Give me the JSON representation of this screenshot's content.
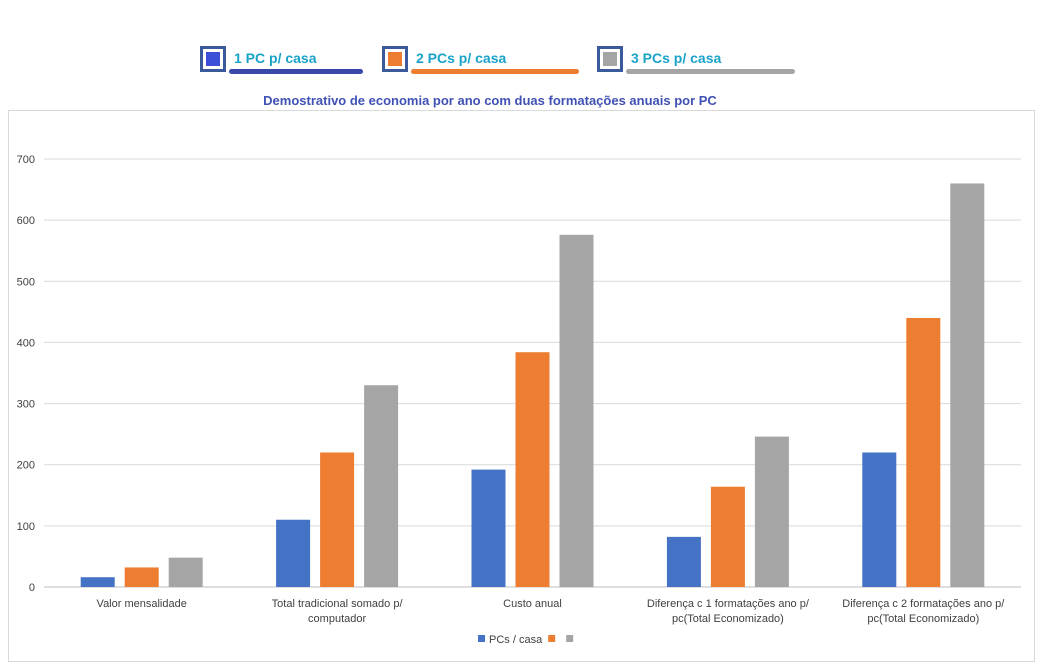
{
  "top_legend": [
    {
      "label": "1 PC p/ casa",
      "swatch_color": "#3d4fd6",
      "line_color": "#3949a8"
    },
    {
      "label": "2 PCs p/ casa",
      "swatch_color": "#ed7d31",
      "line_color": "#ed7d31"
    },
    {
      "label": "3 PCs p/ casa",
      "swatch_color": "#a5a5a5",
      "line_color": "#a5a5a5"
    }
  ],
  "chart_data": {
    "type": "bar",
    "title": "Demostrativo de economia por ano com duas formatações  anuais por PC",
    "xlabel": "",
    "ylabel": "",
    "ylim": [
      0,
      700
    ],
    "yticks": [
      0,
      100,
      200,
      300,
      400,
      500,
      600,
      700
    ],
    "grid": true,
    "legend_position": "bottom",
    "categories": [
      [
        "Valor mensalidade"
      ],
      [
        "Total tradicional somado p/",
        "computador"
      ],
      [
        "Custo anual"
      ],
      [
        "Diferença c 1 formatações ano p/",
        "pc(Total Economizado)"
      ],
      [
        "Diferença c 2 formatações ano p/",
        "pc(Total Economizado)"
      ]
    ],
    "series": [
      {
        "name": "PCs / casa",
        "color": "#4472c4",
        "values": [
          16,
          110,
          192,
          82,
          220
        ]
      },
      {
        "name": "",
        "color": "#ed7d31",
        "values": [
          32,
          220,
          384,
          164,
          440
        ]
      },
      {
        "name": "",
        "color": "#a5a5a5",
        "values": [
          48,
          330,
          576,
          246,
          660
        ]
      }
    ]
  }
}
